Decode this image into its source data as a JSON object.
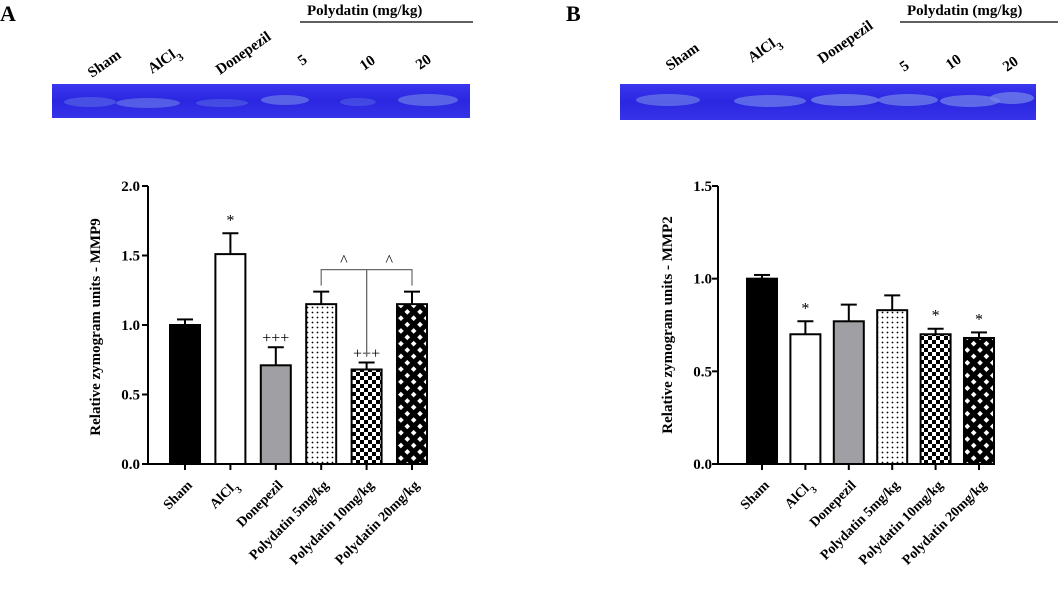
{
  "panels": [
    {
      "letter": "A",
      "gel": {
        "lanes": [
          "Sham",
          "AlCl",
          "Donepezil",
          "5",
          "10",
          "20"
        ],
        "subscript": "3",
        "header": "Polydatin (mg/kg)",
        "color": "#2d28e6"
      },
      "chart_data": {
        "type": "bar",
        "title": "",
        "ylabel": "Relative zymogram units - MMP9",
        "xlabel": "",
        "ylim": [
          0,
          2.0
        ],
        "yticks": [
          "0.0",
          "0.5",
          "1.0",
          "1.5",
          "2.0"
        ],
        "categories": [
          "Sham",
          "AlCl3",
          "Donepezil",
          "Polydatin 5mg/kg",
          "Polydatin 10mg/kg",
          "Polydatin 20mg/kg"
        ],
        "values": [
          1.0,
          1.51,
          0.71,
          1.15,
          0.68,
          1.15
        ],
        "errors": [
          0.04,
          0.15,
          0.13,
          0.09,
          0.05,
          0.09
        ],
        "annotations": [
          "",
          "*",
          "+++",
          "",
          "+++",
          ""
        ],
        "brackets": [
          {
            "from": "Polydatin 5mg/kg",
            "to": "Polydatin 10mg/kg",
            "label": "^"
          },
          {
            "from": "Polydatin 10mg/kg",
            "to": "Polydatin 20mg/kg",
            "label": "^"
          }
        ]
      }
    },
    {
      "letter": "B",
      "gel": {
        "lanes": [
          "Sham",
          "AlCl",
          "Donepezil",
          "5",
          "10",
          "20"
        ],
        "subscript": "3",
        "header": "Polydatin (mg/kg)",
        "color": "#2d28e6"
      },
      "chart_data": {
        "type": "bar",
        "title": "",
        "ylabel": "Relative zymogram units - MMP2",
        "xlabel": "",
        "ylim": [
          0,
          1.5
        ],
        "yticks": [
          "0.0",
          "0.5",
          "1.0",
          "1.5"
        ],
        "categories": [
          "Sham",
          "AlCl3",
          "Donepezil",
          "Polydatin 5mg/kg",
          "Polydatin 10mg/kg",
          "Polydatin 20mg/kg"
        ],
        "values": [
          1.0,
          0.7,
          0.77,
          0.83,
          0.7,
          0.68
        ],
        "errors": [
          0.02,
          0.07,
          0.09,
          0.08,
          0.03,
          0.03
        ],
        "annotations": [
          "",
          "*",
          "",
          "",
          "*",
          "*"
        ],
        "brackets": []
      }
    }
  ]
}
